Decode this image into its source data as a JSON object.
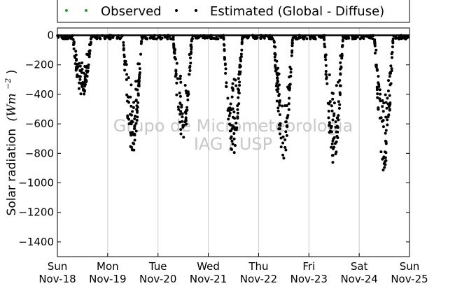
{
  "chart_data": {
    "type": "scatter",
    "ylabel": "Solar radiation (W m^-2)",
    "ylabel_text": "Solar radiation",
    "ylabel_unit": "(Wm",
    "ylabel_unit_exp": "−2",
    "ylabel_unit_close": ")",
    "ylim": [
      -1500,
      50
    ],
    "yticks": [
      0,
      -200,
      -400,
      -600,
      -800,
      -1000,
      -1200,
      -1400
    ],
    "xlim": [
      0,
      7
    ],
    "xticks": [
      {
        "day": "Sun",
        "date": "Nov-18"
      },
      {
        "day": "Mon",
        "date": "Nov-19"
      },
      {
        "day": "Tue",
        "date": "Nov-20"
      },
      {
        "day": "Wed",
        "date": "Nov-21"
      },
      {
        "day": "Thu",
        "date": "Nov-22"
      },
      {
        "day": "Fri",
        "date": "Nov-23"
      },
      {
        "day": "Sat",
        "date": "Nov-24"
      },
      {
        "day": "Sun",
        "date": "Nov-25"
      }
    ],
    "grid": "vertical",
    "legend_position": "top",
    "series": [
      {
        "name": "Observed",
        "color": "#2ca02c",
        "marker": "dot"
      },
      {
        "name": "Estimated (Global - Diffuse)",
        "color": "#000000",
        "marker": "dot",
        "daily_min_estimate": [
          -430,
          -820,
          -740,
          -820,
          -860,
          -900,
          -920
        ]
      }
    ],
    "watermark_lines": [
      "Grupo de Micrometeorologia",
      "IAG / USP"
    ]
  }
}
